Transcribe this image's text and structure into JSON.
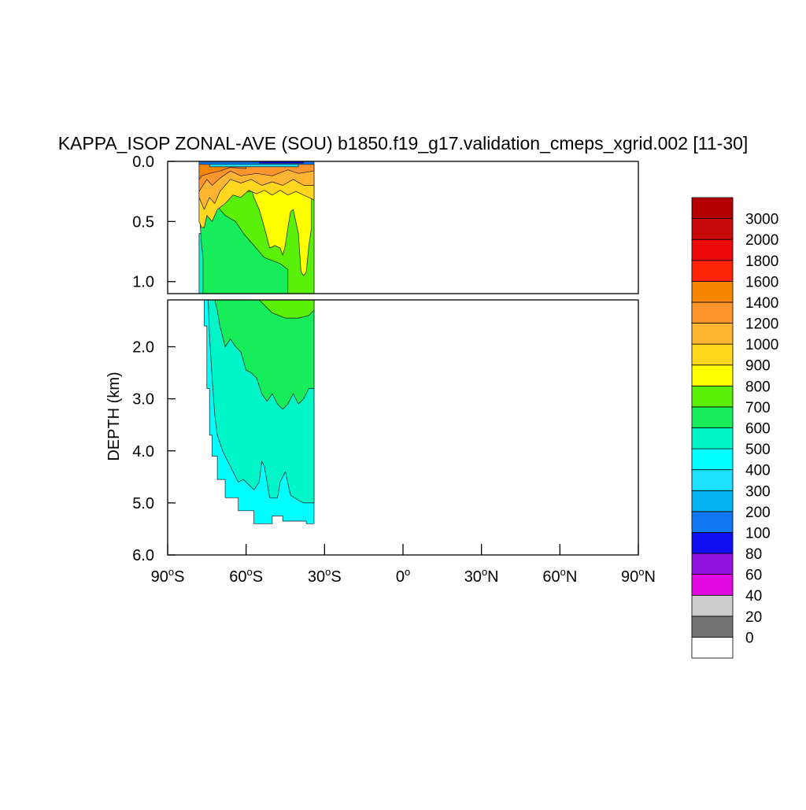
{
  "chart_data": {
    "type": "heatmap",
    "subtype": "filled-contour",
    "title": "KAPPA_ISOP ZONAL-AVE (SOU) b1850.f19_g17.validation_cmeps_xgrid.002 [11-30]",
    "xlabel": "",
    "ylabel": "DEPTH (km)",
    "x_range": [
      -90,
      90
    ],
    "y_range_top_panel_km": [
      0.0,
      1.1
    ],
    "y_range_bottom_panel_km": [
      1.1,
      6.0
    ],
    "y_inverted": true,
    "top_panel_ticks": [
      "0.0",
      "0.5",
      "1.0"
    ],
    "bottom_panel_ticks": [
      "2.0",
      "3.0",
      "4.0",
      "5.0",
      "6.0"
    ],
    "x_ticks": [
      {
        "v": -90,
        "deg": "90",
        "hem": "S"
      },
      {
        "v": -60,
        "deg": "60",
        "hem": "S"
      },
      {
        "v": -30,
        "deg": "30",
        "hem": "S"
      },
      {
        "v": 0,
        "deg": "0",
        "hem": ""
      },
      {
        "v": 30,
        "deg": "30",
        "hem": "N"
      },
      {
        "v": 60,
        "deg": "60",
        "hem": "N"
      },
      {
        "v": 90,
        "deg": "90",
        "hem": "N"
      }
    ],
    "data_extent": {
      "lat": [
        -78,
        -34
      ],
      "depth_km": [
        0,
        5.4
      ]
    },
    "colorbar": {
      "levels": [
        "0",
        "20",
        "40",
        "60",
        "80",
        "100",
        "200",
        "300",
        "400",
        "500",
        "600",
        "700",
        "800",
        "900",
        "1000",
        "1200",
        "1400",
        "1600",
        "1800",
        "2000",
        "3000"
      ],
      "colors": [
        "#ffffff",
        "#737373",
        "#cdcdcd",
        "#e10be1",
        "#9311dc",
        "#0f0ff0",
        "#0f78f0",
        "#04b4f0",
        "#1ee1ff",
        "#00ffff",
        "#00f5c8",
        "#17ec5a",
        "#5af00a",
        "#ffff00",
        "#ffd71e",
        "#ffb432",
        "#ff962d",
        "#f58700",
        "#ff230a",
        "#ed0a0a",
        "#c80a0a",
        "#b40000"
      ]
    },
    "regions": [
      {
        "name": "deep-400-500",
        "value": 450,
        "poly": [
          [
            -78,
            1.1
          ],
          [
            -34,
            1.1
          ],
          [
            -34,
            5.4
          ],
          [
            -37,
            5.4
          ],
          [
            -37,
            5.35
          ],
          [
            -46,
            5.35
          ],
          [
            -46,
            5.25
          ],
          [
            -50,
            5.25
          ],
          [
            -50,
            5.4
          ],
          [
            -57,
            5.4
          ],
          [
            -57,
            5.15
          ],
          [
            -63,
            5.15
          ],
          [
            -63,
            4.9
          ],
          [
            -68,
            4.9
          ],
          [
            -68,
            4.55
          ],
          [
            -71,
            4.55
          ],
          [
            -71,
            4.1
          ],
          [
            -73,
            4.1
          ],
          [
            -73,
            3.7
          ],
          [
            -74,
            3.7
          ],
          [
            -74,
            2.8
          ],
          [
            -75,
            2.8
          ],
          [
            -75,
            1.6
          ],
          [
            -76,
            1.6
          ],
          [
            -76,
            1.1
          ]
        ]
      },
      {
        "name": "deep-500-600",
        "value": 550,
        "poly": [
          [
            -75,
            1.1
          ],
          [
            -34,
            1.1
          ],
          [
            -34,
            5.0
          ],
          [
            -38,
            5.0
          ],
          [
            -40,
            4.95
          ],
          [
            -43,
            4.85
          ],
          [
            -45,
            4.4
          ],
          [
            -47,
            4.6
          ],
          [
            -48,
            4.9
          ],
          [
            -51,
            4.9
          ],
          [
            -53,
            4.3
          ],
          [
            -54,
            4.2
          ],
          [
            -55,
            4.6
          ],
          [
            -57,
            4.75
          ],
          [
            -59,
            4.65
          ],
          [
            -61,
            4.55
          ],
          [
            -63,
            4.6
          ],
          [
            -65,
            4.4
          ],
          [
            -67,
            4.2
          ],
          [
            -69,
            4.0
          ],
          [
            -71,
            3.7
          ],
          [
            -72,
            3.3
          ],
          [
            -73,
            2.6
          ],
          [
            -74,
            1.8
          ],
          [
            -74.5,
            1.1
          ]
        ]
      },
      {
        "name": "deep-600-700",
        "value": 650,
        "poly": [
          [
            -73,
            1.1
          ],
          [
            -34,
            1.1
          ],
          [
            -34,
            2.8
          ],
          [
            -36,
            2.8
          ],
          [
            -38,
            3.0
          ],
          [
            -40,
            3.1
          ],
          [
            -42,
            2.9
          ],
          [
            -44,
            3.1
          ],
          [
            -46,
            3.2
          ],
          [
            -48,
            3.1
          ],
          [
            -50,
            2.9
          ],
          [
            -52,
            3.05
          ],
          [
            -54,
            2.9
          ],
          [
            -56,
            2.6
          ],
          [
            -58,
            2.5
          ],
          [
            -60,
            2.45
          ],
          [
            -62,
            2.1
          ],
          [
            -64,
            2.0
          ],
          [
            -66,
            1.85
          ],
          [
            -68,
            2.0
          ],
          [
            -70,
            1.6
          ],
          [
            -71,
            1.3
          ],
          [
            -72,
            1.1
          ]
        ]
      },
      {
        "name": "deep-700-800",
        "value": 750,
        "poly": [
          [
            -60,
            1.1
          ],
          [
            -34,
            1.1
          ],
          [
            -34,
            1.3
          ],
          [
            -36,
            1.4
          ],
          [
            -40,
            1.45
          ],
          [
            -45,
            1.45
          ],
          [
            -50,
            1.35
          ],
          [
            -53,
            1.2
          ],
          [
            -55,
            1.1
          ]
        ]
      },
      {
        "name": "upper-500-600",
        "value": 550,
        "poly": [
          [
            -78,
            0.6
          ],
          [
            -76.5,
            0.6
          ],
          [
            -76.5,
            1.1
          ],
          [
            -78,
            1.1
          ]
        ]
      },
      {
        "name": "upper-600-700",
        "value": 650,
        "poly": [
          [
            -78,
            0.15
          ],
          [
            -34,
            0.15
          ],
          [
            -34,
            1.1
          ],
          [
            -76.5,
            1.1
          ],
          [
            -76.5,
            0.8
          ],
          [
            -77,
            0.7
          ],
          [
            -77.5,
            0.55
          ]
        ]
      },
      {
        "name": "upper-700-800",
        "value": 750,
        "poly": [
          [
            -72,
            0.3
          ],
          [
            -66,
            0.25
          ],
          [
            -60,
            0.25
          ],
          [
            -54,
            0.25
          ],
          [
            -48,
            0.22
          ],
          [
            -40,
            0.22
          ],
          [
            -34,
            0.22
          ],
          [
            -34,
            1.1
          ],
          [
            -44,
            1.1
          ],
          [
            -44,
            0.9
          ],
          [
            -47,
            0.85
          ],
          [
            -53,
            0.8
          ],
          [
            -57,
            0.7
          ],
          [
            -61,
            0.6
          ],
          [
            -64,
            0.5
          ],
          [
            -68,
            0.45
          ],
          [
            -70,
            0.4
          ]
        ]
      },
      {
        "name": "upper-800-900",
        "value": 850,
        "poly": [
          [
            -59,
            0.15
          ],
          [
            -35,
            0.15
          ],
          [
            -35,
            0.55
          ],
          [
            -36,
            0.7
          ],
          [
            -37,
            0.92
          ],
          [
            -38,
            0.95
          ],
          [
            -39,
            0.92
          ],
          [
            -40,
            0.6
          ],
          [
            -41,
            0.5
          ],
          [
            -42,
            0.4
          ],
          [
            -43,
            0.42
          ],
          [
            -44,
            0.55
          ],
          [
            -45,
            0.7
          ],
          [
            -46,
            0.78
          ],
          [
            -47,
            0.72
          ],
          [
            -49,
            0.7
          ],
          [
            -51,
            0.72
          ],
          [
            -53,
            0.55
          ],
          [
            -55,
            0.4
          ],
          [
            -57,
            0.3
          ]
        ]
      },
      {
        "name": "upper-900-1000",
        "value": 950,
        "poly": [
          [
            -78,
            0.02
          ],
          [
            -34,
            0.02
          ],
          [
            -34,
            0.32
          ],
          [
            -36,
            0.3
          ],
          [
            -38,
            0.28
          ],
          [
            -41,
            0.25
          ],
          [
            -44,
            0.28
          ],
          [
            -47,
            0.24
          ],
          [
            -50,
            0.28
          ],
          [
            -53,
            0.24
          ],
          [
            -56,
            0.27
          ],
          [
            -59,
            0.24
          ],
          [
            -62,
            0.3
          ],
          [
            -65,
            0.28
          ],
          [
            -68,
            0.35
          ],
          [
            -71,
            0.4
          ],
          [
            -73,
            0.5
          ],
          [
            -75,
            0.45
          ],
          [
            -76,
            0.55
          ],
          [
            -77,
            0.55
          ],
          [
            -78,
            0.5
          ]
        ]
      },
      {
        "name": "upper-1000-1200",
        "value": 1100,
        "poly": [
          [
            -78,
            0.02
          ],
          [
            -34,
            0.02
          ],
          [
            -34,
            0.2
          ],
          [
            -38,
            0.2
          ],
          [
            -42,
            0.15
          ],
          [
            -46,
            0.2
          ],
          [
            -50,
            0.17
          ],
          [
            -54,
            0.2
          ],
          [
            -58,
            0.15
          ],
          [
            -62,
            0.18
          ],
          [
            -66,
            0.15
          ],
          [
            -68,
            0.2
          ],
          [
            -70,
            0.25
          ],
          [
            -72,
            0.35
          ],
          [
            -74,
            0.3
          ],
          [
            -76,
            0.4
          ],
          [
            -78,
            0.3
          ]
        ]
      },
      {
        "name": "upper-1200-1400",
        "value": 1300,
        "poly": [
          [
            -78,
            0.02
          ],
          [
            -34,
            0.02
          ],
          [
            -34,
            0.08
          ],
          [
            -40,
            0.1
          ],
          [
            -44,
            0.07
          ],
          [
            -50,
            0.12
          ],
          [
            -56,
            0.1
          ],
          [
            -62,
            0.12
          ],
          [
            -66,
            0.08
          ],
          [
            -70,
            0.14
          ],
          [
            -73,
            0.2
          ],
          [
            -75,
            0.15
          ],
          [
            -78,
            0.25
          ]
        ]
      },
      {
        "name": "upper-1400-1600",
        "value": 1500,
        "poly": [
          [
            -78,
            0.02
          ],
          [
            -60,
            0.02
          ],
          [
            -60,
            0.06
          ],
          [
            -66,
            0.05
          ],
          [
            -70,
            0.08
          ],
          [
            -74,
            0.1
          ],
          [
            -77,
            0.12
          ],
          [
            -78,
            0.15
          ]
        ]
      },
      {
        "name": "surface-100-200",
        "value": 150,
        "poly": [
          [
            -78,
            0.0
          ],
          [
            -34,
            0.0
          ],
          [
            -34,
            0.025
          ],
          [
            -78,
            0.025
          ]
        ]
      },
      {
        "name": "surface-300-400",
        "value": 350,
        "poly": [
          [
            -74,
            0.025
          ],
          [
            -40,
            0.025
          ],
          [
            -40,
            0.045
          ],
          [
            -74,
            0.045
          ]
        ]
      },
      {
        "name": "surface-80-100",
        "value": 90,
        "poly": [
          [
            -55,
            0.0
          ],
          [
            -38,
            0.0
          ],
          [
            -38,
            0.015
          ],
          [
            -55,
            0.015
          ]
        ]
      }
    ]
  }
}
